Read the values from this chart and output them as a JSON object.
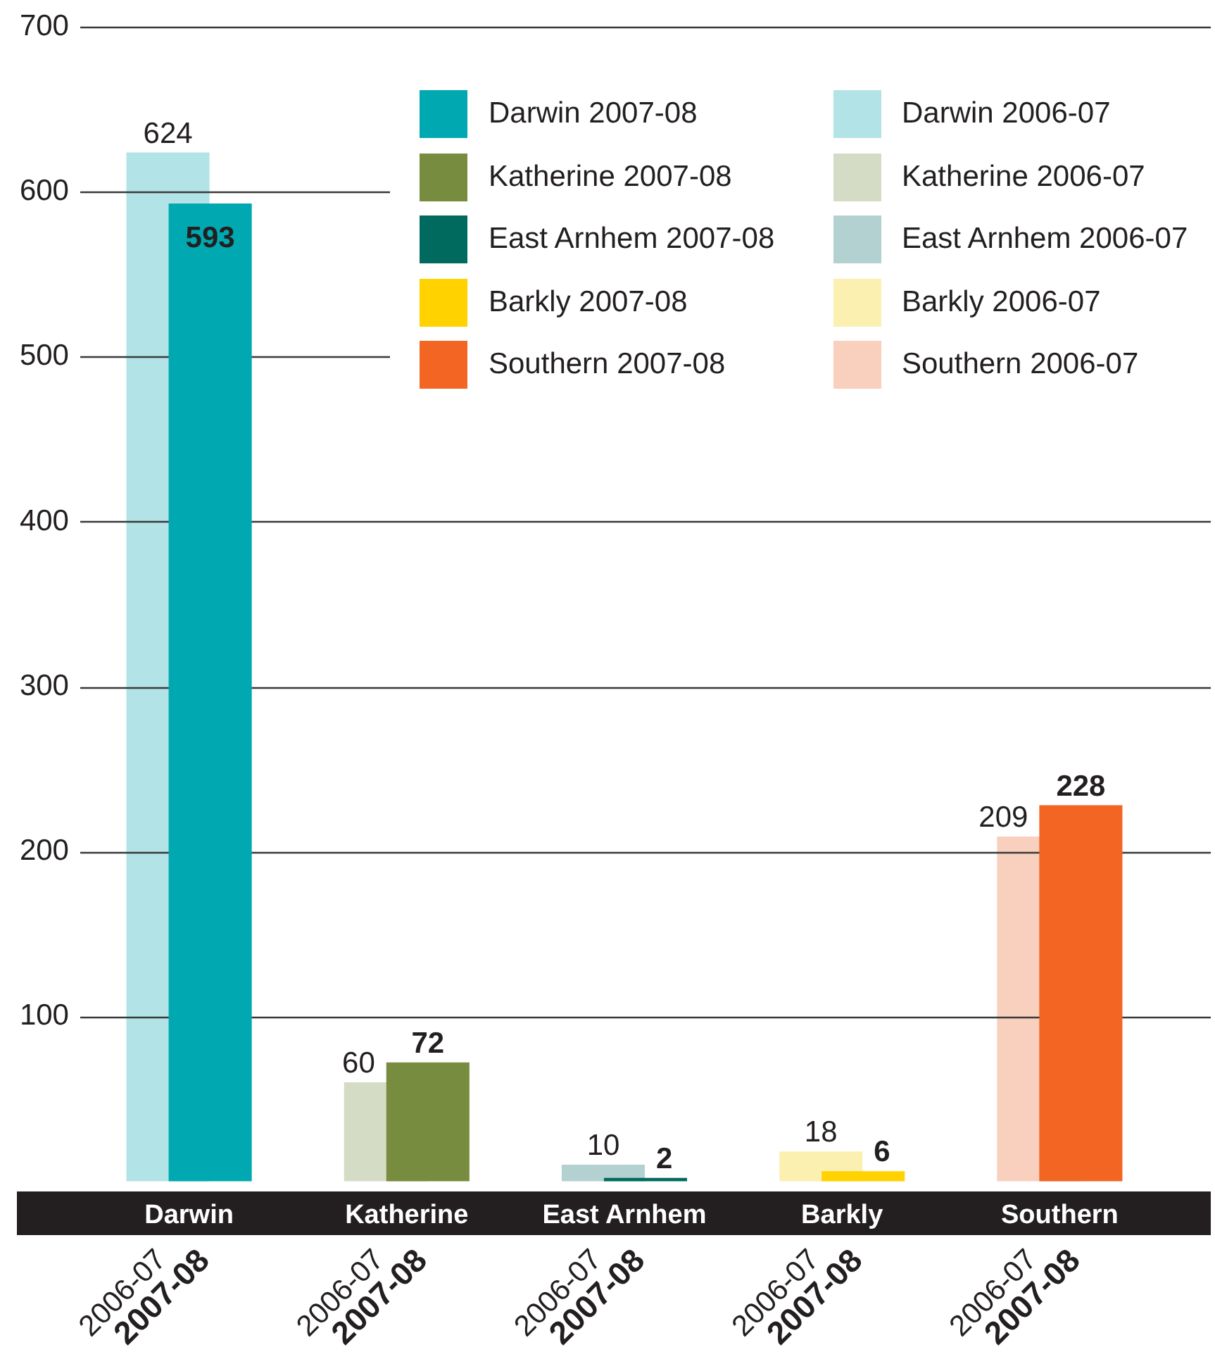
{
  "chart_data": {
    "type": "bar",
    "categories": [
      "Darwin",
      "Katherine",
      "East Arnhem",
      "Barkly",
      "Southern"
    ],
    "series": [
      {
        "name": "Darwin 2006-07",
        "color": "#b2e3e6",
        "values": [
          624,
          null,
          null,
          null,
          null
        ]
      },
      {
        "name": "Katherine 2006-07",
        "color": "#d5dcc6",
        "values": [
          null,
          60,
          null,
          null,
          null
        ]
      },
      {
        "name": "East Arnhem 2006-07",
        "color": "#b3d1d0",
        "values": [
          null,
          null,
          10,
          null,
          null
        ]
      },
      {
        "name": "Barkly 2006-07",
        "color": "#fcf0b1",
        "values": [
          null,
          null,
          null,
          18,
          null
        ]
      },
      {
        "name": "Southern 2006-07",
        "color": "#f9cfbd",
        "values": [
          null,
          null,
          null,
          null,
          209
        ]
      },
      {
        "name": "Darwin 2007-08",
        "color": "#00a9b1",
        "values": [
          593,
          null,
          null,
          null,
          null
        ]
      },
      {
        "name": "Katherine 2007-08",
        "color": "#778c3f",
        "values": [
          null,
          72,
          null,
          null,
          null
        ]
      },
      {
        "name": "East Arnhem 2007-08",
        "color": "#006a5e",
        "values": [
          null,
          null,
          2,
          null,
          null
        ]
      },
      {
        "name": "Barkly 2007-08",
        "color": "#ffd200",
        "values": [
          null,
          null,
          null,
          6,
          null
        ]
      },
      {
        "name": "Southern 2007-08",
        "color": "#f26522",
        "values": [
          null,
          null,
          null,
          null,
          228
        ]
      }
    ],
    "ylim": [
      0,
      700
    ],
    "yticks": [
      100,
      200,
      300,
      400,
      500,
      600,
      700
    ],
    "annotations": [
      "2006-07",
      "2007-08",
      "2006-07",
      "2007-08",
      "2006-07",
      "2007-08",
      "2006-07",
      "2007-08",
      "2006-07",
      "2007-08"
    ],
    "grid": "y",
    "legend": "top right",
    "data_labels": true
  }
}
